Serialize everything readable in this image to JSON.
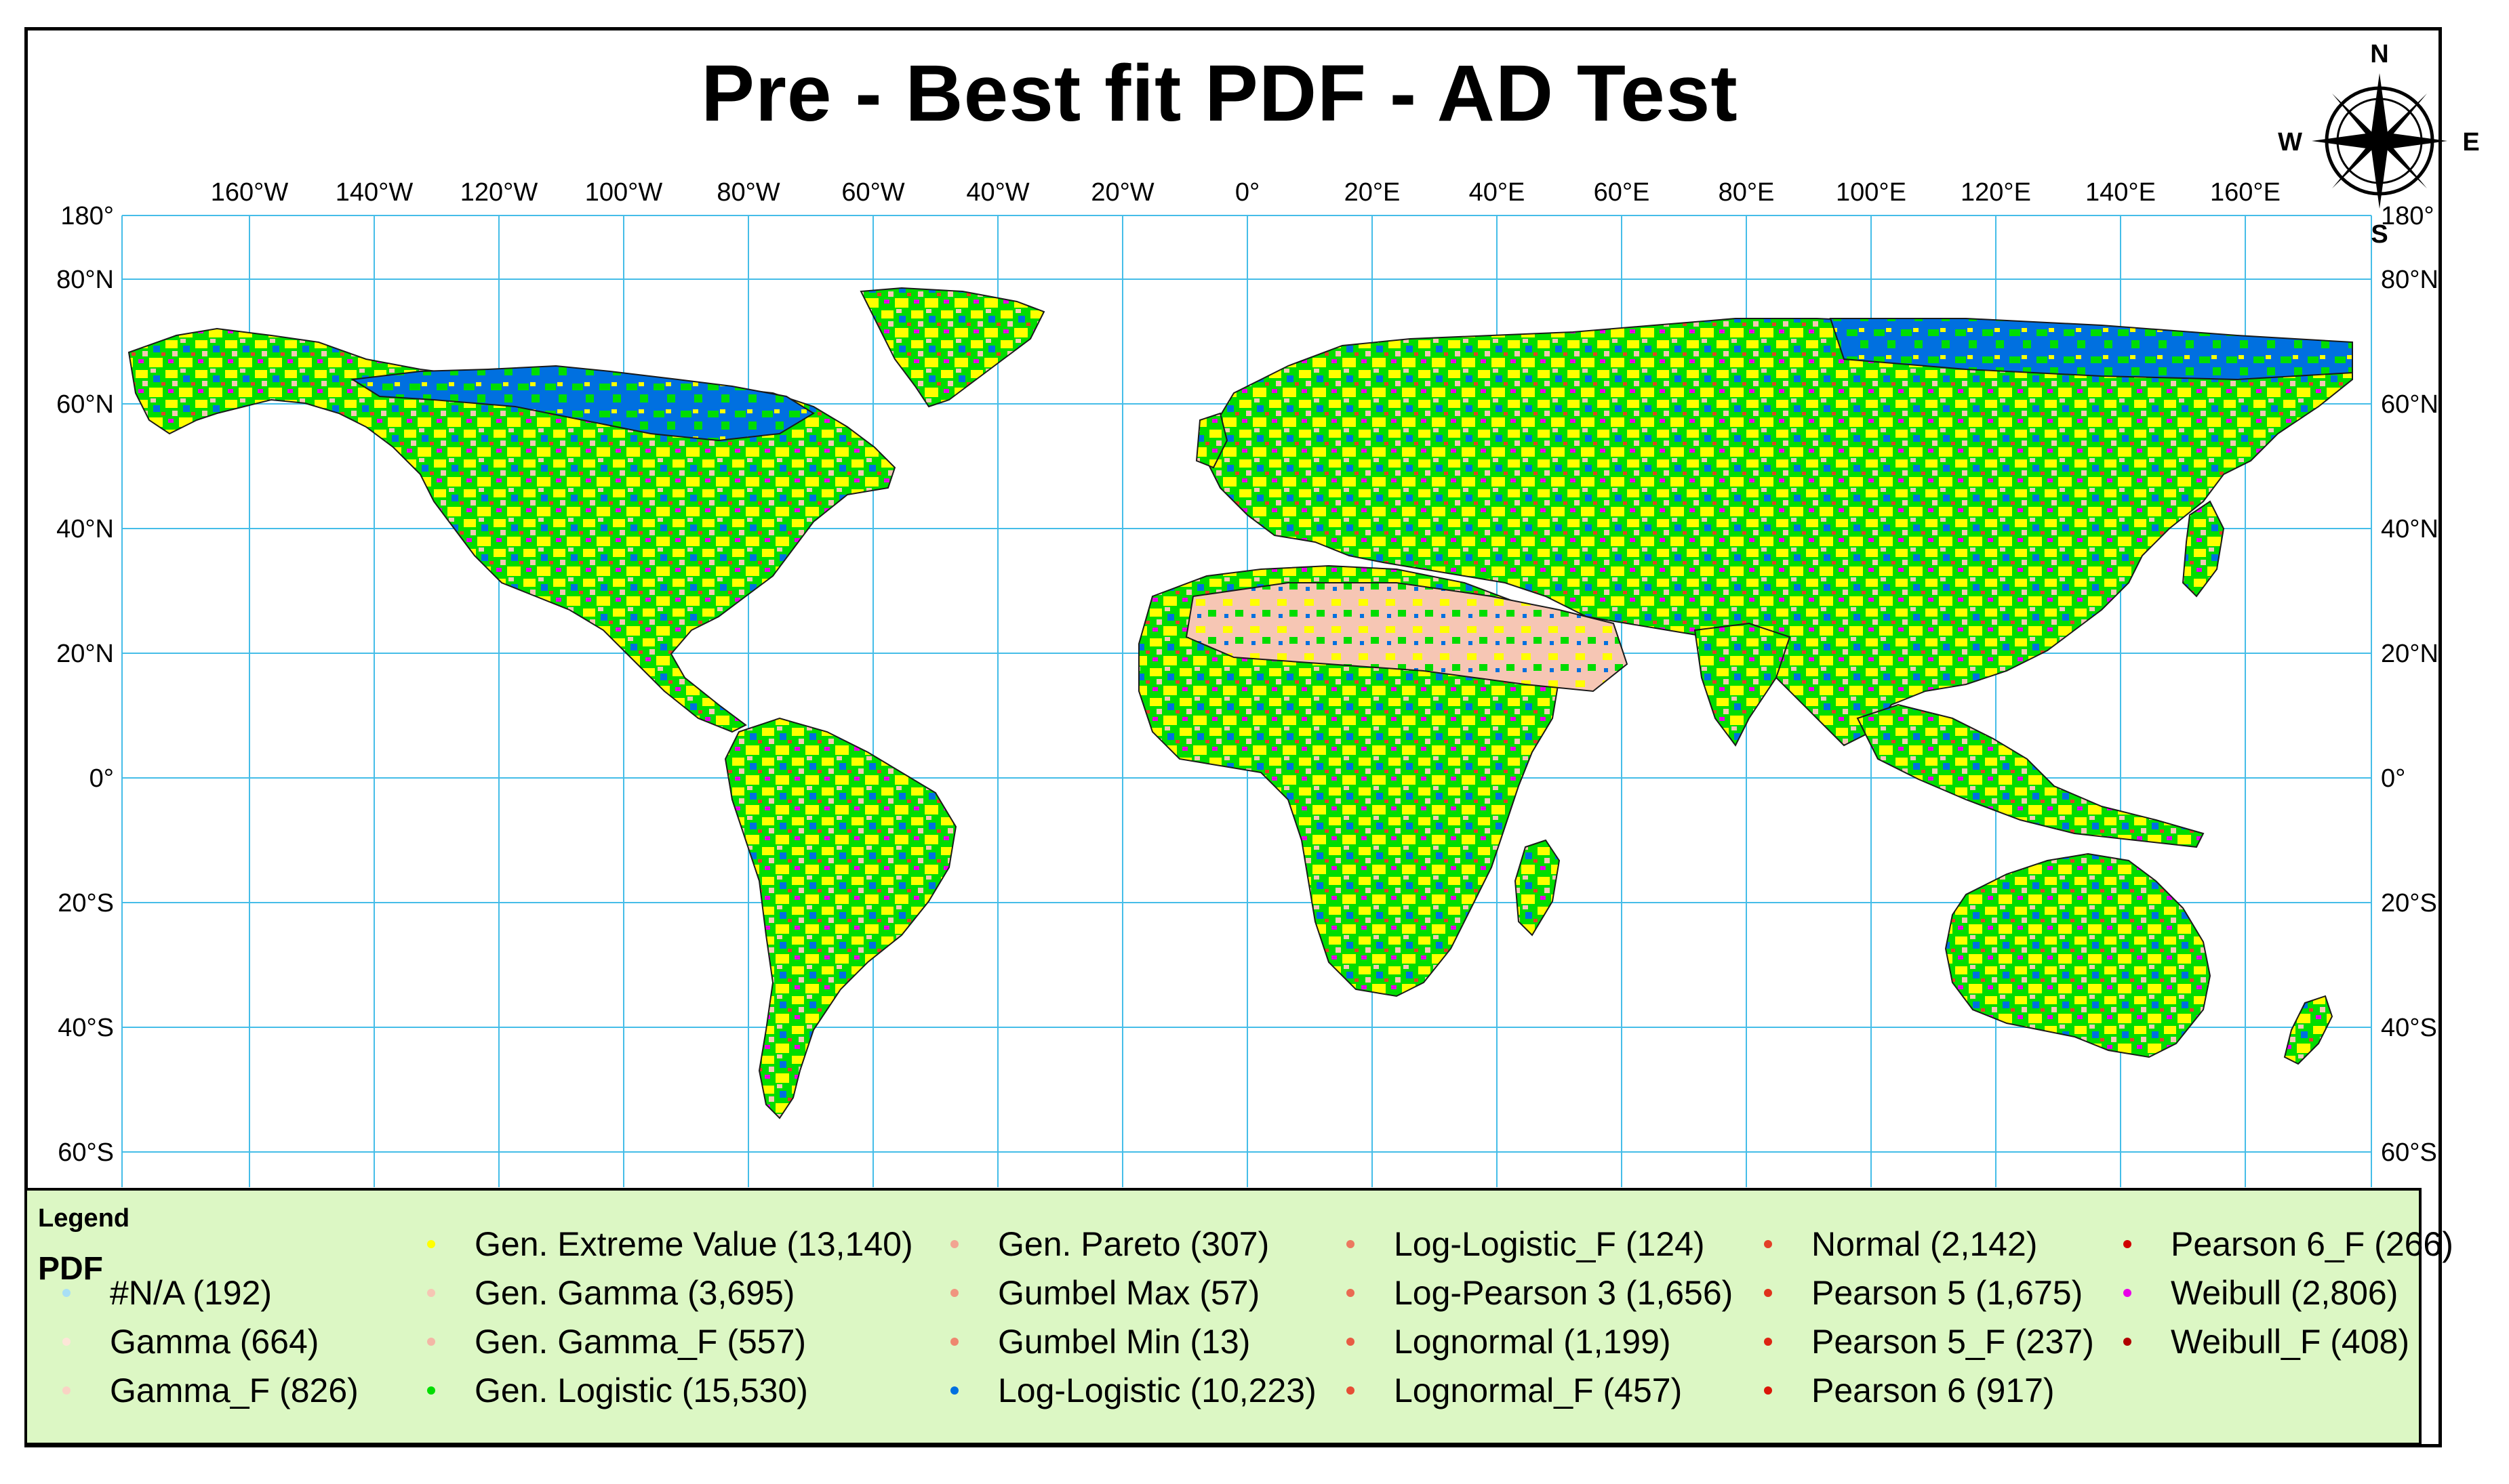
{
  "title": "Pre - Best fit PDF - AD Test",
  "lon_labels": [
    "160°W",
    "140°W",
    "120°W",
    "100°W",
    "80°W",
    "60°W",
    "40°W",
    "20°W",
    "0°",
    "20°E",
    "40°E",
    "60°E",
    "80°E",
    "100°E",
    "120°E",
    "140°E",
    "160°E"
  ],
  "lat_labels": [
    "180°",
    "80°N",
    "60°N",
    "40°N",
    "20°N",
    "0°",
    "20°S",
    "40°S",
    "60°S"
  ],
  "lat_right_labels": [
    "180°",
    "80°N",
    "60°N",
    "40°N",
    "20°N",
    "0°",
    "20°S",
    "40°S",
    "60°S"
  ],
  "compass": {
    "n": "N",
    "s": "S",
    "e": "E",
    "w": "W"
  },
  "legend": {
    "title": "Legend",
    "field": "PDF",
    "items": [
      {
        "label": "#N/A (192)",
        "color": "#a8dff5"
      },
      {
        "label": "Gamma (664)",
        "color": "#fde6d8"
      },
      {
        "label": "Gamma_F (826)",
        "color": "#f9d3c4"
      },
      {
        "label": "Gen. Extreme Value (13,140)",
        "color": "#ffff00"
      },
      {
        "label": "Gen. Gamma (3,695)",
        "color": "#f6c6b4"
      },
      {
        "label": "Gen. Gamma_F (557)",
        "color": "#f3b7a6"
      },
      {
        "label": "Gen. Logistic (15,530)",
        "color": "#00dd00"
      },
      {
        "label": "Gen. Pareto (307)",
        "color": "#f2a592"
      },
      {
        "label": "Gumbel Max (57)",
        "color": "#f09580"
      },
      {
        "label": "Gumbel Min (13)",
        "color": "#ee876f"
      },
      {
        "label": "Log-Logistic (10,223)",
        "color": "#0070e0"
      },
      {
        "label": "Log-Logistic_F (124)",
        "color": "#ec7860"
      },
      {
        "label": "Log-Pearson 3 (1,656)",
        "color": "#ea6a52"
      },
      {
        "label": "Lognormal (1,199)",
        "color": "#e85c44"
      },
      {
        "label": "Lognormal_F (457)",
        "color": "#e64e36"
      },
      {
        "label": "Normal (2,142)",
        "color": "#e34028"
      },
      {
        "label": "Pearson 5 (1,675)",
        "color": "#e0321c"
      },
      {
        "label": "Pearson 5_F (237)",
        "color": "#dd2412"
      },
      {
        "label": "Pearson 6 (917)",
        "color": "#da1608"
      },
      {
        "label": "Pearson 6_F (266)",
        "color": "#d00000"
      },
      {
        "label": "Weibull (2,806)",
        "color": "#e800e8"
      },
      {
        "label": "Weibull_F (408)",
        "color": "#b00000"
      }
    ]
  }
}
